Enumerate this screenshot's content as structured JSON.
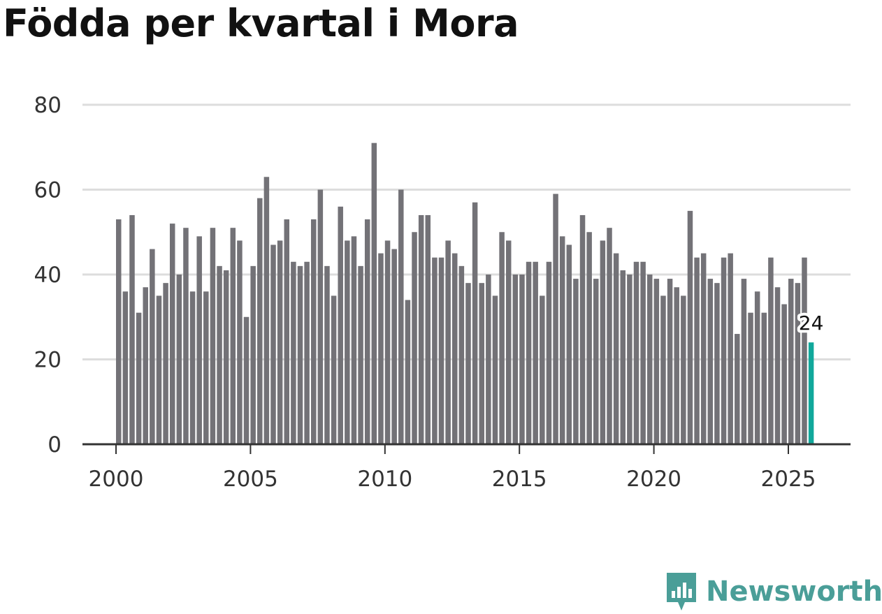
{
  "title": "Födda per kvartal i Mora",
  "brand": "Newsworthy",
  "colors": {
    "bar": "#737277",
    "highlight": "#11a89b",
    "grid": "#dddddd",
    "axis": "#333333",
    "brand": "#4a9e98"
  },
  "chart_data": {
    "type": "bar",
    "title": "Födda per kvartal i Mora",
    "xlabel": "",
    "ylabel": "",
    "ylim": [
      0,
      80
    ],
    "yticks": [
      0,
      20,
      40,
      60,
      80
    ],
    "xticks": [
      2000,
      2005,
      2010,
      2015,
      2020,
      2025
    ],
    "grid": true,
    "legend": "none",
    "start": {
      "year": 2000,
      "quarter": 1
    },
    "values": [
      53,
      36,
      54,
      31,
      37,
      46,
      35,
      38,
      52,
      40,
      51,
      36,
      49,
      36,
      51,
      42,
      41,
      51,
      48,
      30,
      42,
      58,
      63,
      47,
      48,
      53,
      43,
      42,
      43,
      53,
      60,
      42,
      35,
      56,
      48,
      49,
      42,
      53,
      71,
      45,
      48,
      46,
      60,
      34,
      50,
      54,
      54,
      44,
      44,
      48,
      45,
      42,
      38,
      57,
      38,
      40,
      35,
      50,
      48,
      40,
      40,
      43,
      43,
      35,
      43,
      59,
      49,
      47,
      39,
      54,
      50,
      39,
      48,
      51,
      45,
      41,
      40,
      43,
      43,
      40,
      39,
      35,
      39,
      37,
      35,
      55,
      44,
      45,
      39,
      38,
      44,
      45,
      26,
      39,
      31,
      36,
      31,
      44,
      37,
      33,
      39,
      38,
      44,
      24
    ],
    "highlight": {
      "index": 103,
      "label": "24"
    }
  }
}
